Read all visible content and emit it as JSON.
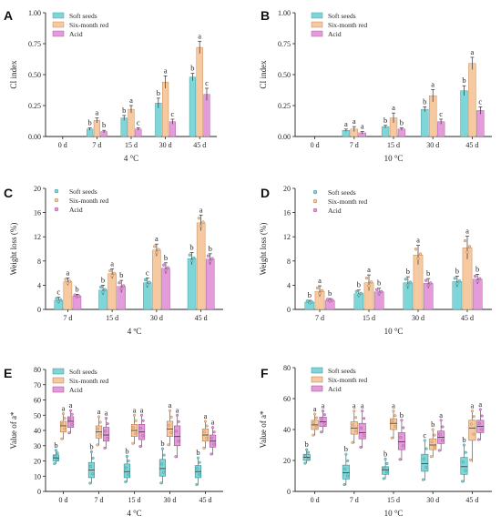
{
  "colors": {
    "soft": "#7FD6D8",
    "six": "#F7C9A0",
    "acid": "#E49BDA",
    "soft_edge": "#3A8E91",
    "six_edge": "#B27A45",
    "acid_edge": "#9B4D93"
  },
  "chart_data": [
    {
      "panel": "A",
      "type": "bar",
      "categories": [
        "0 d",
        "7 d",
        "15 d",
        "30 d",
        "45 d"
      ],
      "xlabel": "4 °C",
      "ylabel": "CI index",
      "ylim": [
        0,
        1.0
      ],
      "yticks": [
        "0.00",
        "0.25",
        "0.50",
        "0.75",
        "1.00"
      ],
      "ytick_values": [
        0,
        0.25,
        0.5,
        0.75,
        1.0
      ],
      "legend": [
        "Soft seeds",
        "Six-month red",
        "Acid"
      ],
      "series": [
        {
          "name": "Soft seeds",
          "values": [
            0,
            0.06,
            0.15,
            0.27,
            0.48
          ],
          "err": [
            0,
            0.01,
            0.02,
            0.04,
            0.03
          ],
          "sig": [
            "",
            "b",
            "b",
            "b",
            "b"
          ]
        },
        {
          "name": "Six-month red",
          "values": [
            0,
            0.13,
            0.22,
            0.44,
            0.72
          ],
          "err": [
            0,
            0.02,
            0.03,
            0.05,
            0.05
          ],
          "sig": [
            "",
            "a",
            "a",
            "a",
            "a"
          ]
        },
        {
          "name": "Acid",
          "values": [
            0,
            0.04,
            0.06,
            0.12,
            0.34
          ],
          "err": [
            0,
            0.01,
            0.01,
            0.02,
            0.05
          ],
          "sig": [
            "",
            "b",
            "c",
            "c",
            "c"
          ]
        }
      ]
    },
    {
      "panel": "B",
      "type": "bar",
      "categories": [
        "0 d",
        "7 d",
        "15 d",
        "30 d",
        "45 d"
      ],
      "xlabel": "10 °C",
      "ylabel": "CI index",
      "ylim": [
        0,
        1.0
      ],
      "yticks": [
        "0.00",
        "0.25",
        "0.50",
        "0.75",
        "1.00"
      ],
      "ytick_values": [
        0,
        0.25,
        0.5,
        0.75,
        1.0
      ],
      "legend": [
        "Soft seeds",
        "Six-month red",
        "Acid"
      ],
      "series": [
        {
          "name": "Soft seeds",
          "values": [
            0,
            0.05,
            0.08,
            0.22,
            0.37
          ],
          "err": [
            0,
            0.01,
            0.01,
            0.02,
            0.04
          ],
          "sig": [
            "",
            "a",
            "b",
            "b",
            "b"
          ]
        },
        {
          "name": "Six-month red",
          "values": [
            0,
            0.06,
            0.15,
            0.33,
            0.59
          ],
          "err": [
            0,
            0.02,
            0.04,
            0.05,
            0.05
          ],
          "sig": [
            "",
            "a",
            "a",
            "a",
            "a"
          ]
        },
        {
          "name": "Acid",
          "values": [
            0,
            0.03,
            0.06,
            0.12,
            0.21
          ],
          "err": [
            0,
            0.01,
            0.01,
            0.02,
            0.03
          ],
          "sig": [
            "",
            "a",
            "b",
            "c",
            "c"
          ]
        }
      ]
    },
    {
      "panel": "C",
      "type": "bar",
      "categories": [
        "7 d",
        "15 d",
        "30 d",
        "45 d"
      ],
      "xlabel": "4 ºC",
      "ylabel": "Weight loss (%)",
      "ylim": [
        0,
        20
      ],
      "yticks": [
        "0",
        "4",
        "8",
        "12",
        "16",
        "20"
      ],
      "ytick_values": [
        0,
        4,
        8,
        12,
        16,
        20
      ],
      "legend": [
        "Soft seeds",
        "Six-month red",
        "Acid"
      ],
      "series": [
        {
          "name": "Soft seeds",
          "values": [
            1.5,
            3.2,
            4.4,
            8.4
          ],
          "err": [
            0.5,
            0.8,
            0.8,
            1.0
          ],
          "sig": [
            "c",
            "b",
            "c",
            "b"
          ]
        },
        {
          "name": "Six-month red",
          "values": [
            4.6,
            5.9,
            9.8,
            14.3
          ],
          "err": [
            0.6,
            0.8,
            1.0,
            1.3
          ],
          "sig": [
            "a",
            "a",
            "a",
            "a"
          ]
        },
        {
          "name": "Acid",
          "values": [
            2.2,
            3.8,
            6.8,
            8.3
          ],
          "err": [
            0.3,
            1.0,
            0.9,
            0.9
          ],
          "sig": [
            "b",
            "b",
            "b",
            "b"
          ]
        }
      ]
    },
    {
      "panel": "D",
      "type": "bar",
      "categories": [
        "7 d",
        "15 d",
        "30 d",
        "45 d"
      ],
      "xlabel": "10 °C",
      "ylabel": "Weight loss (%)",
      "ylim": [
        0,
        20
      ],
      "yticks": [
        "0",
        "4",
        "8",
        "12",
        "16",
        "20"
      ],
      "ytick_values": [
        0,
        4,
        8,
        12,
        16,
        20
      ],
      "legend": [
        "Soft seeds",
        "Six-month red",
        "Acid"
      ],
      "series": [
        {
          "name": "Soft seeds",
          "values": [
            1.2,
            2.6,
            4.4,
            4.6
          ],
          "err": [
            0.3,
            0.6,
            1.0,
            0.9
          ],
          "sig": [
            "b",
            "b",
            "b",
            "b"
          ]
        },
        {
          "name": "Six-month red",
          "values": [
            3.0,
            4.4,
            9.0,
            10.2
          ],
          "err": [
            0.9,
            1.3,
            1.6,
            1.9
          ],
          "sig": [
            "a",
            "a",
            "a",
            "a"
          ]
        },
        {
          "name": "Acid",
          "values": [
            1.5,
            2.9,
            4.3,
            5.0
          ],
          "err": [
            0.3,
            0.6,
            0.8,
            0.8
          ],
          "sig": [
            "b",
            "b",
            "b",
            "b"
          ]
        }
      ]
    },
    {
      "panel": "E",
      "type": "box",
      "categories": [
        "0 d",
        "7 d",
        "15 d",
        "30 d",
        "45 d"
      ],
      "xlabel": "4 °C",
      "ylabel": "Value of a*",
      "ylim": [
        0,
        80
      ],
      "yticks": [
        "0",
        "10",
        "20",
        "30",
        "40",
        "50",
        "60",
        "70",
        "80"
      ],
      "ytick_values": [
        0,
        10,
        20,
        30,
        40,
        50,
        60,
        70,
        80
      ],
      "legend": [
        "Soft seeds",
        "Six-month red",
        "Acid"
      ],
      "series": [
        {
          "name": "Soft seeds",
          "boxes": [
            [
              18,
              20,
              22,
              24,
              27
            ],
            [
              5,
              9,
              14,
              19,
              26
            ],
            [
              6,
              9,
              13,
              18,
              23
            ],
            [
              5,
              10,
              15,
              21,
              28
            ],
            [
              4,
              9,
              13,
              17,
              22
            ]
          ],
          "sig": [
            "b",
            "b",
            "b",
            "b",
            "b"
          ]
        },
        {
          "name": "Six-month red",
          "boxes": [
            [
              34,
              39,
              43,
              46,
              51
            ],
            [
              30,
              35,
              39,
              43,
              49
            ],
            [
              31,
              36,
              40,
              44,
              50
            ],
            [
              30,
              36,
              41,
              46,
              53
            ],
            [
              28,
              33,
              37,
              41,
              46
            ]
          ],
          "sig": [
            "a",
            "a",
            "a",
            "a",
            "a"
          ]
        },
        {
          "name": "Acid",
          "boxes": [
            [
              38,
              42,
              46,
              49,
              53
            ],
            [
              28,
              33,
              37,
              42,
              48
            ],
            [
              29,
              34,
              39,
              44,
              50
            ],
            [
              22,
              30,
              36,
              43,
              50
            ],
            [
              24,
              29,
              33,
              37,
              42
            ]
          ],
          "sig": [
            "a",
            "a",
            "a",
            "a",
            "a"
          ]
        }
      ]
    },
    {
      "panel": "F",
      "type": "box",
      "categories": [
        "0 d",
        "7 d",
        "15 d",
        "30 d",
        "45 d"
      ],
      "xlabel": "10 °C",
      "ylabel": "Value of a*",
      "ylim": [
        0,
        80
      ],
      "yticks": [
        "0",
        "20",
        "40",
        "60",
        "80"
      ],
      "ytick_values": [
        0,
        20,
        40,
        60,
        80
      ],
      "legend": [
        "Soft seeds",
        "Six-month red",
        "Acid"
      ],
      "series": [
        {
          "name": "Soft seeds",
          "boxes": [
            [
              18,
              20,
              22,
              24,
              27
            ],
            [
              4,
              8,
              12,
              17,
              24
            ],
            [
              8,
              11,
              14,
              16,
              21
            ],
            [
              7,
              13,
              18,
              24,
              33
            ],
            [
              6,
              11,
              16,
              22,
              30
            ]
          ],
          "sig": [
            "b",
            "b",
            "b",
            "c",
            "b"
          ]
        },
        {
          "name": "Six-month red",
          "boxes": [
            [
              36,
              40,
              43,
              46,
              50
            ],
            [
              31,
              37,
              41,
              45,
              52
            ],
            [
              34,
              40,
              44,
              47,
              52
            ],
            [
              22,
              27,
              30,
              34,
              40
            ],
            [
              19,
              33,
              41,
              46,
              52
            ]
          ],
          "sig": [
            "a",
            "a",
            "a",
            "b",
            "a"
          ]
        },
        {
          "name": "Acid",
          "boxes": [
            [
              38,
              42,
              45,
              48,
              52
            ],
            [
              28,
              34,
              38,
              44,
              52
            ],
            [
              20,
              27,
              32,
              38,
              46
            ],
            [
              26,
              31,
              35,
              39,
              46
            ],
            [
              33,
              38,
              42,
              46,
              53
            ]
          ],
          "sig": [
            "a",
            "a",
            "b",
            "a",
            "a"
          ]
        }
      ]
    }
  ]
}
